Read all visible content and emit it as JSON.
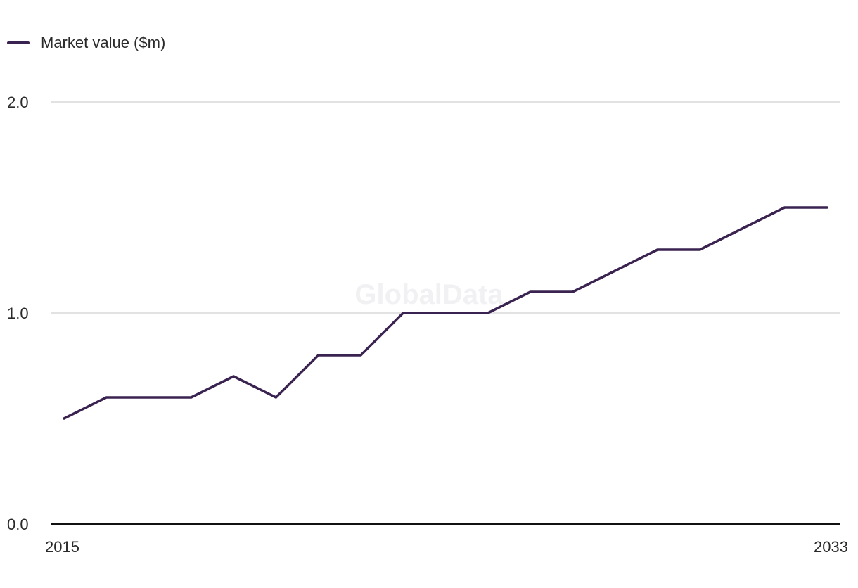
{
  "legend": {
    "label": "Market value ($m)"
  },
  "watermark": "GlobalData",
  "colors": {
    "line": "#3a2350",
    "grid": "#d9d9d9",
    "axis": "#111111"
  },
  "chart_data": {
    "type": "line",
    "title": "",
    "xlabel": "",
    "ylabel": "",
    "x": [
      2015,
      2016,
      2017,
      2018,
      2019,
      2020,
      2021,
      2022,
      2023,
      2024,
      2025,
      2026,
      2027,
      2028,
      2029,
      2030,
      2031,
      2032,
      2033
    ],
    "series": [
      {
        "name": "Market value ($m)",
        "values": [
          0.5,
          0.6,
          0.6,
          0.6,
          0.7,
          0.6,
          0.8,
          0.8,
          1.0,
          1.0,
          1.0,
          1.1,
          1.1,
          1.2,
          1.3,
          1.3,
          1.4,
          1.5,
          1.5
        ]
      }
    ],
    "xlim": [
      2015,
      2033
    ],
    "ylim": [
      0.0,
      2.0
    ],
    "yticks": [
      "0.0",
      "1.0",
      "2.0"
    ],
    "xticks": [
      "2015",
      "2033"
    ],
    "grid": true,
    "legend_position": "top-left"
  }
}
